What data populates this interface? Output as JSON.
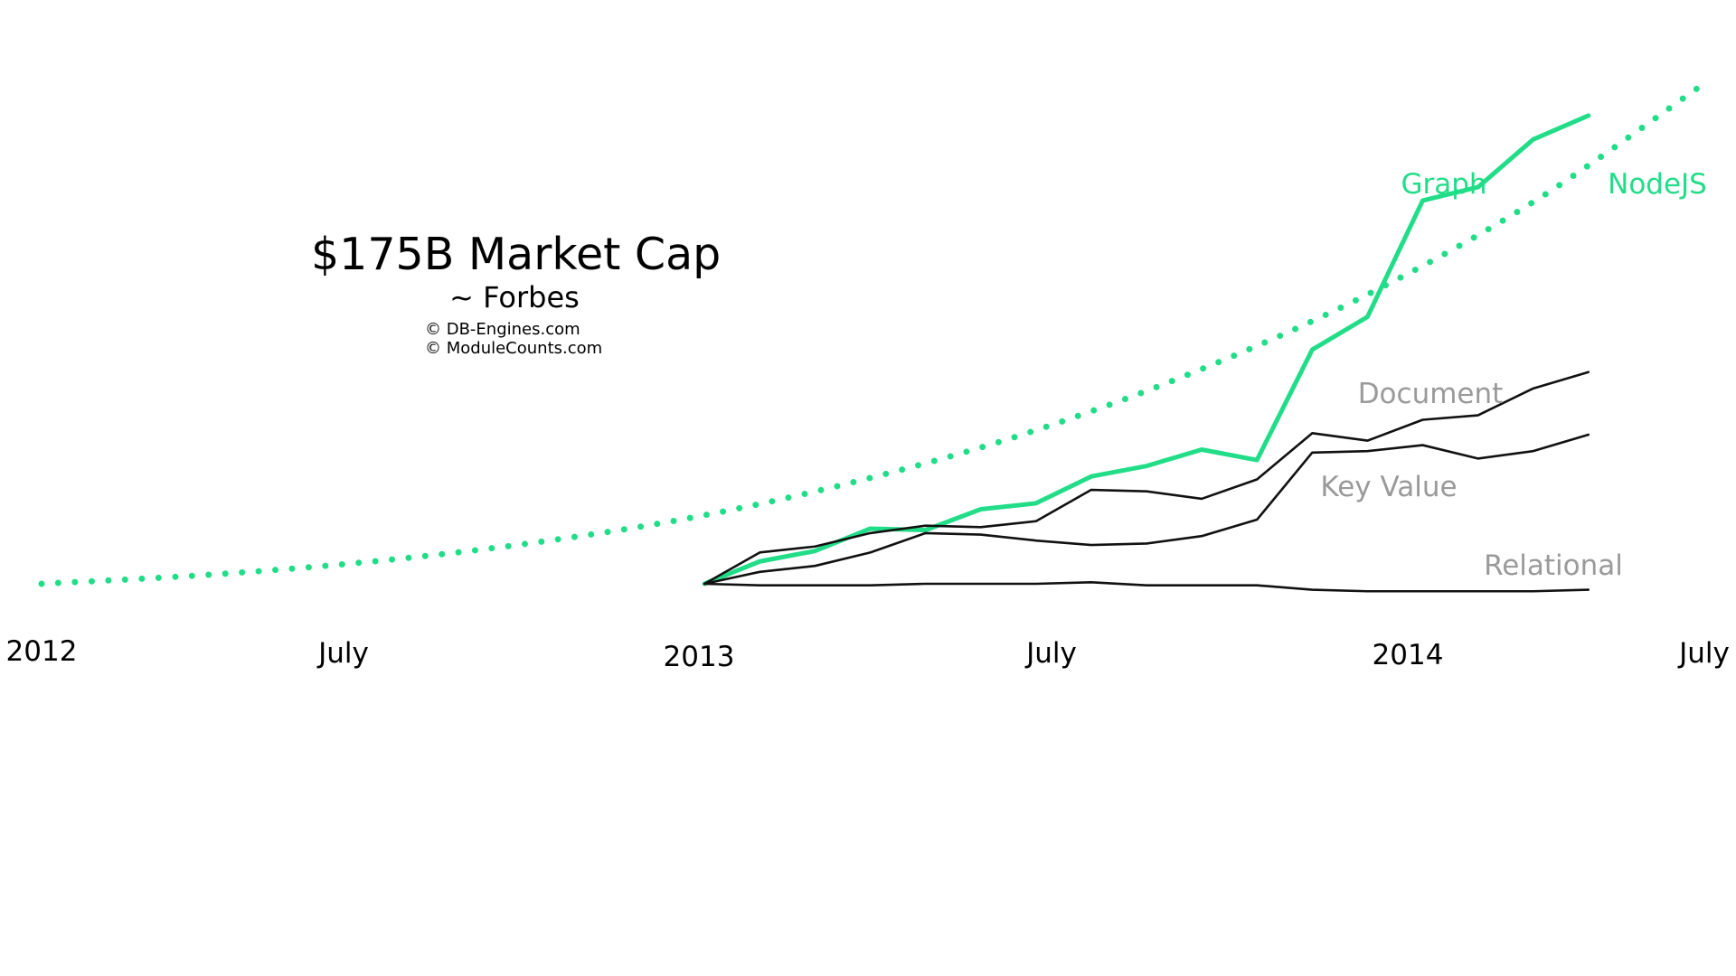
{
  "annotations": {
    "headline": "$175B Market Cap",
    "source": "~ Forbes",
    "credits": [
      "© DB-Engines.com",
      "© ModuleCounts.com"
    ]
  },
  "chart_data": {
    "type": "line",
    "x_tick_labels": [
      "2012",
      "July",
      "2013",
      "July",
      "2014",
      "July"
    ],
    "xlim": [
      "2012-01",
      "2014-07"
    ],
    "grid": false,
    "legend": "inline labels at line ends",
    "colors": {
      "accent": "#22dd88",
      "neutral": "#111111",
      "label_gray": "#9a9a9a"
    },
    "series": [
      {
        "name": "NodeJS",
        "style": "dotted",
        "color": "#22dd88",
        "x": [
          "2012-01",
          "2012-04",
          "2012-07",
          "2012-10",
          "2013-01",
          "2013-04",
          "2013-07",
          "2013-10",
          "2014-01",
          "2014-04",
          "2014-07"
        ],
        "values": [
          0,
          6,
          15,
          28,
          46,
          71,
          103,
          144,
          194,
          256,
          333
        ]
      },
      {
        "name": "Graph",
        "style": "solid-thick",
        "color": "#22dd88",
        "x": [
          "2013-01",
          "2013-02",
          "2013-03",
          "2013-04",
          "2013-05",
          "2013-06",
          "2013-07",
          "2013-08",
          "2013-09",
          "2013-10",
          "2013-11",
          "2013-12",
          "2014-01",
          "2014-02",
          "2014-03",
          "2014-04",
          "2014-05"
        ],
        "values": [
          0,
          15,
          22,
          37,
          36,
          50,
          54,
          72,
          79,
          90,
          83,
          157,
          179,
          257,
          266,
          298,
          314
        ]
      },
      {
        "name": "Document",
        "style": "solid",
        "color": "#111111",
        "x": [
          "2013-01",
          "2013-02",
          "2013-03",
          "2013-04",
          "2013-05",
          "2013-06",
          "2013-07",
          "2013-08",
          "2013-09",
          "2013-10",
          "2013-11",
          "2013-12",
          "2014-01",
          "2014-02",
          "2014-03",
          "2014-04",
          "2014-05"
        ],
        "values": [
          0,
          21,
          25,
          34,
          39,
          38,
          42,
          63,
          62,
          57,
          70,
          101,
          96,
          110,
          113,
          131,
          142
        ]
      },
      {
        "name": "Key Value",
        "style": "solid",
        "color": "#111111",
        "x": [
          "2013-01",
          "2013-02",
          "2013-03",
          "2013-04",
          "2013-05",
          "2013-06",
          "2013-07",
          "2013-08",
          "2013-09",
          "2013-10",
          "2013-11",
          "2013-12",
          "2014-01",
          "2014-02",
          "2014-03",
          "2014-04",
          "2014-05"
        ],
        "values": [
          0,
          8,
          12,
          21,
          34,
          33,
          29,
          26,
          27,
          32,
          43,
          88,
          89,
          93,
          84,
          89,
          100
        ]
      },
      {
        "name": "Relational",
        "style": "solid",
        "color": "#111111",
        "x": [
          "2013-01",
          "2013-02",
          "2013-03",
          "2013-04",
          "2013-05",
          "2013-06",
          "2013-07",
          "2013-08",
          "2013-09",
          "2013-10",
          "2013-11",
          "2013-12",
          "2014-01",
          "2014-02",
          "2014-03",
          "2014-04",
          "2014-05"
        ],
        "values": [
          0,
          -1,
          -1,
          -1,
          0,
          0,
          0,
          1,
          -1,
          -1,
          -1,
          -4,
          -5,
          -5,
          -5,
          -5,
          -4
        ]
      }
    ]
  }
}
